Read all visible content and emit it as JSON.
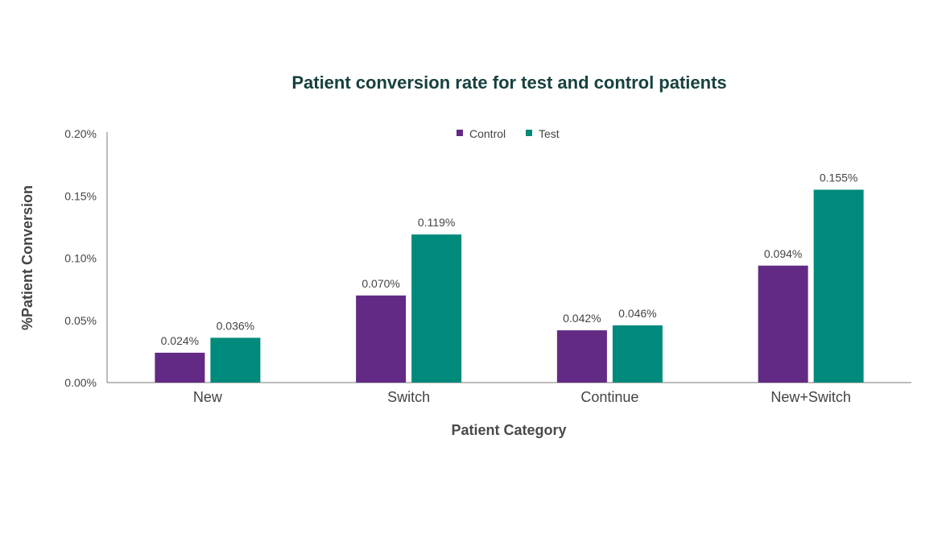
{
  "chart_data": {
    "type": "bar",
    "title": "Patient conversion rate for test and control patients",
    "xlabel": "Patient Category",
    "ylabel": "%Patient Conversion",
    "categories": [
      "New",
      "Switch",
      "Continue",
      "New+Switch"
    ],
    "series": [
      {
        "name": "Control",
        "color": "#632a85",
        "values": [
          0.024,
          0.07,
          0.042,
          0.094
        ],
        "labels": [
          "0.024%",
          "0.070%",
          "0.042%",
          "0.094%"
        ]
      },
      {
        "name": "Test",
        "color": "#008a7c",
        "values": [
          0.036,
          0.119,
          0.046,
          0.155
        ],
        "labels": [
          "0.036%",
          "0.119%",
          "0.046%",
          "0.155%"
        ]
      }
    ],
    "ylim": [
      0,
      0.2
    ],
    "yticks": [
      "0.00%",
      "0.05%",
      "0.10%",
      "0.15%",
      "0.20%"
    ],
    "ytick_values": [
      0,
      0.05,
      0.1,
      0.15,
      0.2
    ],
    "grid": false,
    "legend_position": "top-center"
  }
}
